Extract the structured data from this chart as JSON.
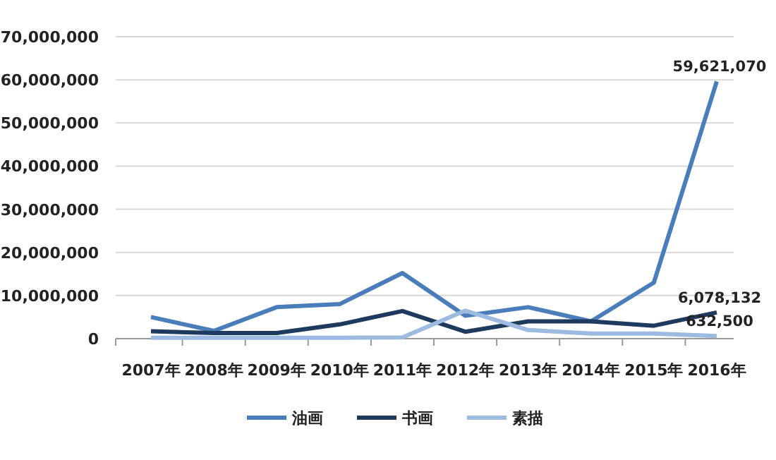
{
  "chart_data": {
    "type": "line",
    "categories": [
      "2007年",
      "2008年",
      "2009年",
      "2010年",
      "2011年",
      "2012年",
      "2013年",
      "2014年",
      "2015年",
      "2016年"
    ],
    "series": [
      {
        "name": "油画",
        "color": "#4a7ebb",
        "values": [
          5000000,
          1800000,
          7300000,
          8000000,
          15200000,
          5300000,
          7300000,
          4000000,
          13000000,
          59621070
        ],
        "value_labels": [
          null,
          null,
          null,
          null,
          null,
          null,
          null,
          null,
          null,
          "59,621,070"
        ]
      },
      {
        "name": "书画",
        "color": "#1f3a5f",
        "values": [
          1700000,
          1300000,
          1300000,
          3300000,
          6400000,
          1600000,
          4000000,
          4000000,
          3000000,
          6078132
        ],
        "value_labels": [
          null,
          null,
          null,
          null,
          null,
          null,
          null,
          null,
          null,
          "6,078,132"
        ]
      },
      {
        "name": "素描",
        "color": "#9dbbe0",
        "values": [
          200000,
          200000,
          200000,
          200000,
          300000,
          6500000,
          2000000,
          1200000,
          1200000,
          632500
        ],
        "value_labels": [
          null,
          null,
          null,
          null,
          null,
          null,
          null,
          null,
          null,
          "632,500"
        ]
      }
    ],
    "ylim": [
      0,
      70000000
    ],
    "yticks": [
      {
        "value": 0,
        "label": "0"
      },
      {
        "value": 10000000,
        "label": "10,000,000"
      },
      {
        "value": 20000000,
        "label": "20,000,000"
      },
      {
        "value": 30000000,
        "label": "30,000,000"
      },
      {
        "value": 40000000,
        "label": "40,000,000"
      },
      {
        "value": 50000000,
        "label": "50,000,000"
      },
      {
        "value": 60000000,
        "label": "60,000,000"
      },
      {
        "value": 70000000,
        "label": "70,000,000"
      }
    ],
    "grid": "y",
    "legend": "bottom",
    "marker": "none",
    "line_style": "solid"
  }
}
